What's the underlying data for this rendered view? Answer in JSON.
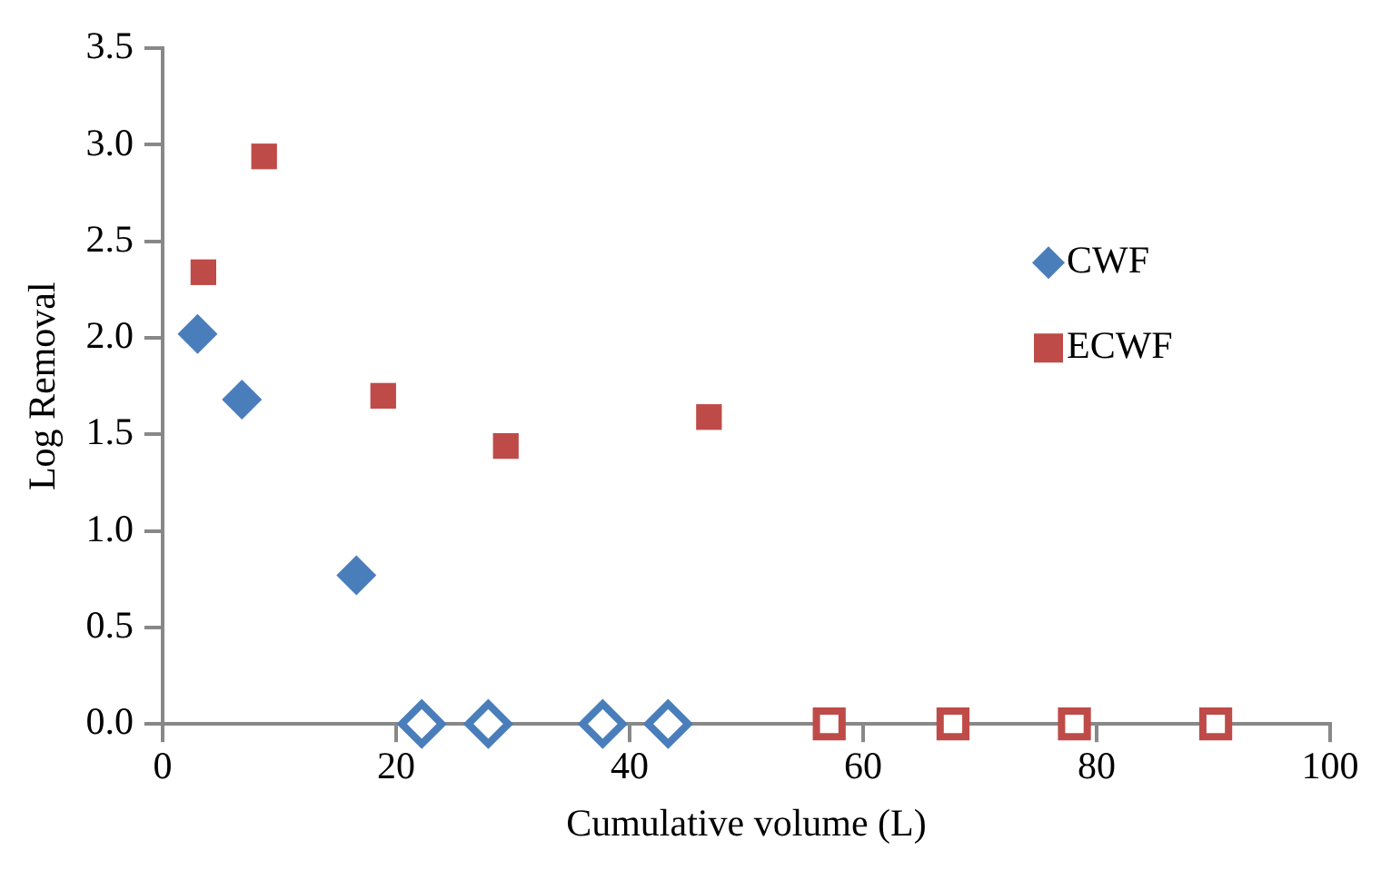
{
  "chart_data": {
    "type": "scatter",
    "xlabel": "Cumulative volume (L)",
    "ylabel": "Log Removal",
    "xlim": [
      0,
      100
    ],
    "xticks": [
      0,
      20,
      40,
      60,
      80,
      100
    ],
    "ylim": [
      0,
      3.5
    ],
    "yticks": [
      {
        "value": 0,
        "label": "0.0"
      },
      0.5,
      {
        "value": 1,
        "label": "1.0"
      },
      1.5,
      {
        "value": 2,
        "label": "2.0"
      },
      2.5,
      {
        "value": 3,
        "label": "3.0"
      },
      3.5
    ],
    "grid": false,
    "legend": "top right",
    "series": [
      {
        "name": "CWF",
        "color": "#4a7ebb",
        "marker": "diamond",
        "x": [
          3.0,
          6.8,
          16.6
        ],
        "values": [
          2.02,
          1.68,
          0.77
        ]
      },
      {
        "color": "#4a7ebb",
        "marker": "diamond",
        "x": [
          22.2,
          27.9,
          37.7,
          43.3
        ],
        "values": [
          0,
          0,
          0,
          0
        ]
      },
      {
        "name": "ECWF",
        "color": "#be4b48",
        "marker": "square",
        "x": [
          3.5,
          8.7,
          18.9,
          29.4,
          46.8
        ],
        "values": [
          2.34,
          2.94,
          1.7,
          1.44,
          1.59
        ]
      },
      {
        "color": "#be4b48",
        "marker": "square",
        "x": [
          57.1,
          67.7,
          78.1,
          90.2
        ],
        "values": [
          0,
          0,
          0,
          0
        ]
      }
    ]
  }
}
